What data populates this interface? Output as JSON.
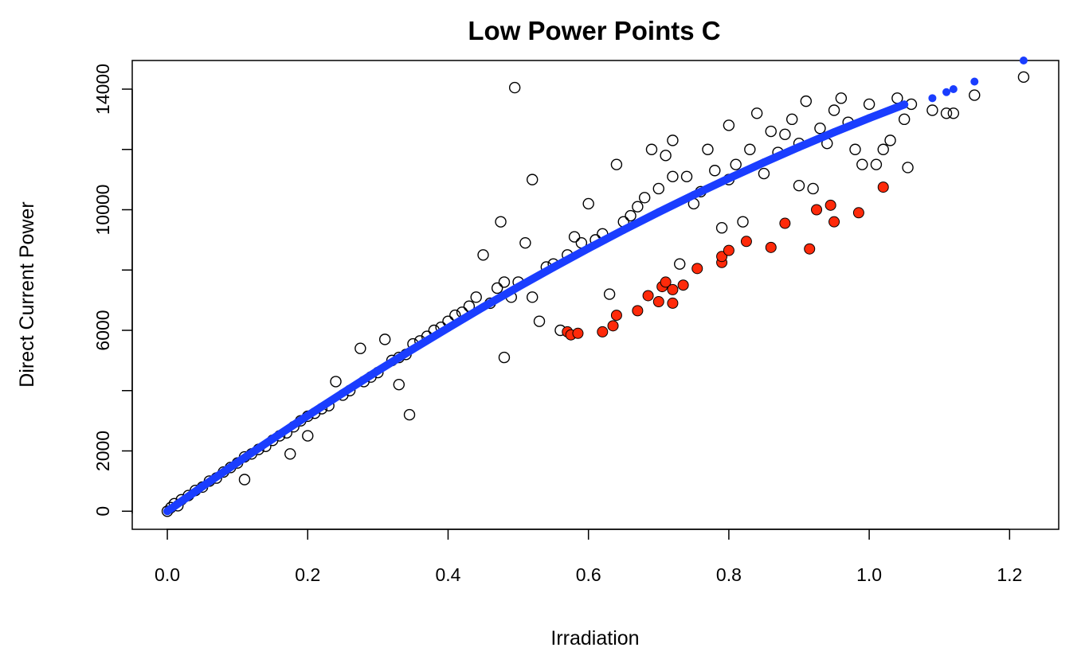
{
  "chart_data": {
    "type": "scatter",
    "title": "Low Power Points  C",
    "xlabel": "Irradiation",
    "ylabel": "Direct Current Power",
    "xlim": [
      -0.05,
      1.27
    ],
    "ylim": [
      -600,
      14950
    ],
    "xticks": [
      "0.0",
      "0.2",
      "0.4",
      "0.6",
      "0.8",
      "1.0",
      "1.2"
    ],
    "yticks": [
      "0",
      "2000",
      "6000",
      "10000",
      "14000"
    ],
    "grid": false,
    "legend": "none",
    "colors": {
      "observed": "#000000",
      "fitted": "#1a3dff",
      "low_power": "#ff2a0a"
    },
    "series": [
      {
        "style": "open-circle",
        "color": "#000000",
        "points": [
          [
            0.0,
            0
          ],
          [
            0.005,
            120
          ],
          [
            0.01,
            250
          ],
          [
            0.015,
            180
          ],
          [
            0.02,
            380
          ],
          [
            0.03,
            520
          ],
          [
            0.04,
            690
          ],
          [
            0.05,
            800
          ],
          [
            0.06,
            1000
          ],
          [
            0.07,
            1100
          ],
          [
            0.08,
            1300
          ],
          [
            0.09,
            1450
          ],
          [
            0.1,
            1600
          ],
          [
            0.11,
            1050
          ],
          [
            0.11,
            1800
          ],
          [
            0.12,
            1900
          ],
          [
            0.13,
            2050
          ],
          [
            0.14,
            2150
          ],
          [
            0.15,
            2350
          ],
          [
            0.16,
            2500
          ],
          [
            0.17,
            2600
          ],
          [
            0.175,
            1900
          ],
          [
            0.18,
            2800
          ],
          [
            0.19,
            3000
          ],
          [
            0.2,
            3150
          ],
          [
            0.2,
            2500
          ],
          [
            0.21,
            3250
          ],
          [
            0.22,
            3400
          ],
          [
            0.23,
            3500
          ],
          [
            0.24,
            4300
          ],
          [
            0.25,
            3850
          ],
          [
            0.26,
            4000
          ],
          [
            0.275,
            5400
          ],
          [
            0.28,
            4300
          ],
          [
            0.29,
            4450
          ],
          [
            0.3,
            4600
          ],
          [
            0.31,
            5700
          ],
          [
            0.32,
            5000
          ],
          [
            0.33,
            5100
          ],
          [
            0.33,
            4200
          ],
          [
            0.34,
            5200
          ],
          [
            0.345,
            3200
          ],
          [
            0.35,
            5550
          ],
          [
            0.36,
            5650
          ],
          [
            0.37,
            5800
          ],
          [
            0.38,
            6000
          ],
          [
            0.39,
            6100
          ],
          [
            0.4,
            6300
          ],
          [
            0.41,
            6500
          ],
          [
            0.42,
            6600
          ],
          [
            0.43,
            6800
          ],
          [
            0.44,
            7100
          ],
          [
            0.45,
            8500
          ],
          [
            0.46,
            6900
          ],
          [
            0.47,
            7400
          ],
          [
            0.475,
            9600
          ],
          [
            0.48,
            7600
          ],
          [
            0.48,
            5100
          ],
          [
            0.49,
            7100
          ],
          [
            0.495,
            14050
          ],
          [
            0.5,
            7600
          ],
          [
            0.51,
            8900
          ],
          [
            0.52,
            7100
          ],
          [
            0.52,
            11000
          ],
          [
            0.53,
            6300
          ],
          [
            0.54,
            8100
          ],
          [
            0.55,
            8200
          ],
          [
            0.56,
            6000
          ],
          [
            0.57,
            8500
          ],
          [
            0.58,
            9100
          ],
          [
            0.59,
            8900
          ],
          [
            0.6,
            10200
          ],
          [
            0.61,
            9000
          ],
          [
            0.62,
            9200
          ],
          [
            0.63,
            7200
          ],
          [
            0.64,
            11500
          ],
          [
            0.65,
            9600
          ],
          [
            0.66,
            9800
          ],
          [
            0.67,
            10100
          ],
          [
            0.68,
            10400
          ],
          [
            0.69,
            12000
          ],
          [
            0.7,
            10700
          ],
          [
            0.71,
            11800
          ],
          [
            0.72,
            11100
          ],
          [
            0.72,
            12300
          ],
          [
            0.73,
            8200
          ],
          [
            0.74,
            11100
          ],
          [
            0.75,
            10200
          ],
          [
            0.76,
            10600
          ],
          [
            0.77,
            12000
          ],
          [
            0.78,
            11300
          ],
          [
            0.79,
            9400
          ],
          [
            0.8,
            11000
          ],
          [
            0.8,
            12800
          ],
          [
            0.81,
            11500
          ],
          [
            0.82,
            9600
          ],
          [
            0.83,
            12000
          ],
          [
            0.84,
            13200
          ],
          [
            0.85,
            11200
          ],
          [
            0.86,
            12600
          ],
          [
            0.87,
            11900
          ],
          [
            0.88,
            12500
          ],
          [
            0.89,
            13000
          ],
          [
            0.9,
            12200
          ],
          [
            0.9,
            10800
          ],
          [
            0.91,
            13600
          ],
          [
            0.92,
            10700
          ],
          [
            0.93,
            12700
          ],
          [
            0.94,
            12200
          ],
          [
            0.95,
            13300
          ],
          [
            0.96,
            13700
          ],
          [
            0.97,
            12900
          ],
          [
            0.98,
            12000
          ],
          [
            0.99,
            11500
          ],
          [
            1.0,
            13500
          ],
          [
            1.01,
            11500
          ],
          [
            1.02,
            12000
          ],
          [
            1.03,
            12300
          ],
          [
            1.04,
            13700
          ],
          [
            1.05,
            13000
          ],
          [
            1.055,
            11400
          ],
          [
            1.06,
            13500
          ],
          [
            1.09,
            13300
          ],
          [
            1.11,
            13200
          ],
          [
            1.12,
            13200
          ],
          [
            1.15,
            13800
          ],
          [
            1.22,
            14400
          ]
        ]
      },
      {
        "style": "filled-circle",
        "color": "#1a3dff",
        "points": [
          [
            0.0,
            0
          ],
          [
            0.05,
            820
          ],
          [
            0.1,
            1620
          ],
          [
            0.15,
            2400
          ],
          [
            0.2,
            3170
          ],
          [
            0.25,
            3920
          ],
          [
            0.3,
            4660
          ],
          [
            0.35,
            5380
          ],
          [
            0.4,
            6080
          ],
          [
            0.45,
            6770
          ],
          [
            0.5,
            7440
          ],
          [
            0.55,
            8090
          ],
          [
            0.6,
            8720
          ],
          [
            0.65,
            9330
          ],
          [
            0.7,
            9920
          ],
          [
            0.75,
            10490
          ],
          [
            0.8,
            11040
          ],
          [
            0.85,
            11570
          ],
          [
            0.9,
            12080
          ],
          [
            0.95,
            12570
          ],
          [
            1.0,
            13040
          ],
          [
            1.05,
            13490
          ],
          [
            1.09,
            13700
          ],
          [
            1.11,
            13900
          ],
          [
            1.12,
            14000
          ],
          [
            1.15,
            14250
          ],
          [
            1.22,
            14950
          ]
        ]
      },
      {
        "style": "filled-circle",
        "color": "#ff2a0a",
        "points": [
          [
            0.57,
            5950
          ],
          [
            0.575,
            5850
          ],
          [
            0.585,
            5900
          ],
          [
            0.62,
            5950
          ],
          [
            0.635,
            6150
          ],
          [
            0.64,
            6500
          ],
          [
            0.67,
            6650
          ],
          [
            0.685,
            7150
          ],
          [
            0.7,
            6950
          ],
          [
            0.705,
            7450
          ],
          [
            0.71,
            7600
          ],
          [
            0.72,
            6900
          ],
          [
            0.72,
            7350
          ],
          [
            0.735,
            7500
          ],
          [
            0.755,
            8050
          ],
          [
            0.79,
            8250
          ],
          [
            0.79,
            8450
          ],
          [
            0.8,
            8650
          ],
          [
            0.825,
            8950
          ],
          [
            0.86,
            8750
          ],
          [
            0.88,
            9550
          ],
          [
            0.915,
            8700
          ],
          [
            0.925,
            10000
          ],
          [
            0.945,
            10150
          ],
          [
            0.95,
            9600
          ],
          [
            0.985,
            9900
          ],
          [
            1.02,
            10750
          ]
        ]
      }
    ]
  }
}
